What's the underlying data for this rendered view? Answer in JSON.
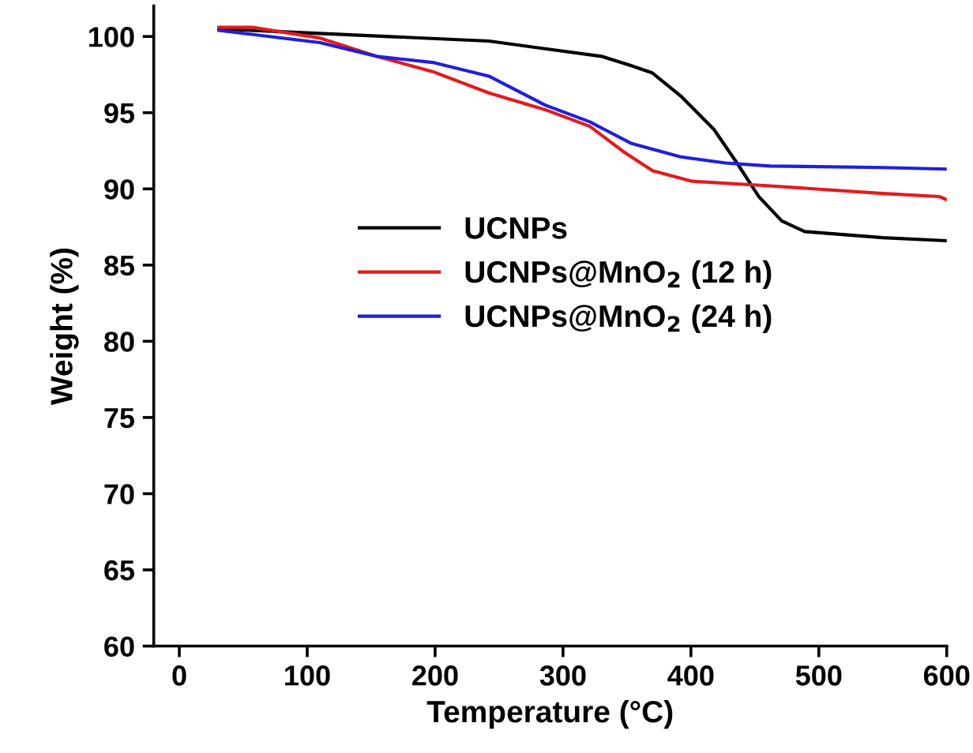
{
  "chart_data": {
    "type": "line",
    "xlabel": "Temperature (°C)",
    "ylabel": "Weight (%)",
    "xlim": [
      -20,
      600
    ],
    "ylim": [
      60,
      102
    ],
    "xticks": [
      0,
      100,
      200,
      300,
      400,
      500,
      600
    ],
    "yticks": [
      60,
      65,
      70,
      75,
      80,
      85,
      90,
      95,
      100
    ],
    "grid": false,
    "legend": "center",
    "marker": "none",
    "line_style": "solid",
    "series": [
      {
        "name": "UCNPs",
        "color": "#000000",
        "x": [
          31,
          110,
          242,
          286,
          330,
          353,
          370,
          392,
          418,
          436,
          453,
          471,
          489,
          550,
          600
        ],
        "values": [
          100.5,
          100.2,
          99.7,
          99.2,
          98.7,
          98.1,
          97.6,
          96.1,
          93.9,
          91.7,
          89.5,
          87.9,
          87.2,
          86.8,
          86.6
        ]
      },
      {
        "name": "UCNPs@MnO$_{2}$ (12 h)",
        "color": "#e41a1c",
        "x": [
          31,
          57,
          110,
          154,
          198,
          242,
          286,
          321,
          348,
          370,
          401,
          462,
          550,
          594,
          600
        ],
        "values": [
          100.6,
          100.6,
          99.9,
          98.7,
          97.7,
          96.3,
          95.2,
          94.1,
          92.4,
          91.2,
          90.5,
          90.2,
          89.7,
          89.5,
          89.3
        ]
      },
      {
        "name": "UCNPs@MnO$_{2}$ (24 h)",
        "color": "#1f1fe0",
        "x": [
          31,
          110,
          154,
          198,
          242,
          286,
          321,
          353,
          392,
          427,
          462,
          550,
          600
        ],
        "values": [
          100.4,
          99.6,
          98.7,
          98.3,
          97.4,
          95.5,
          94.4,
          93.0,
          92.1,
          91.7,
          91.5,
          91.4,
          91.3
        ]
      }
    ]
  }
}
